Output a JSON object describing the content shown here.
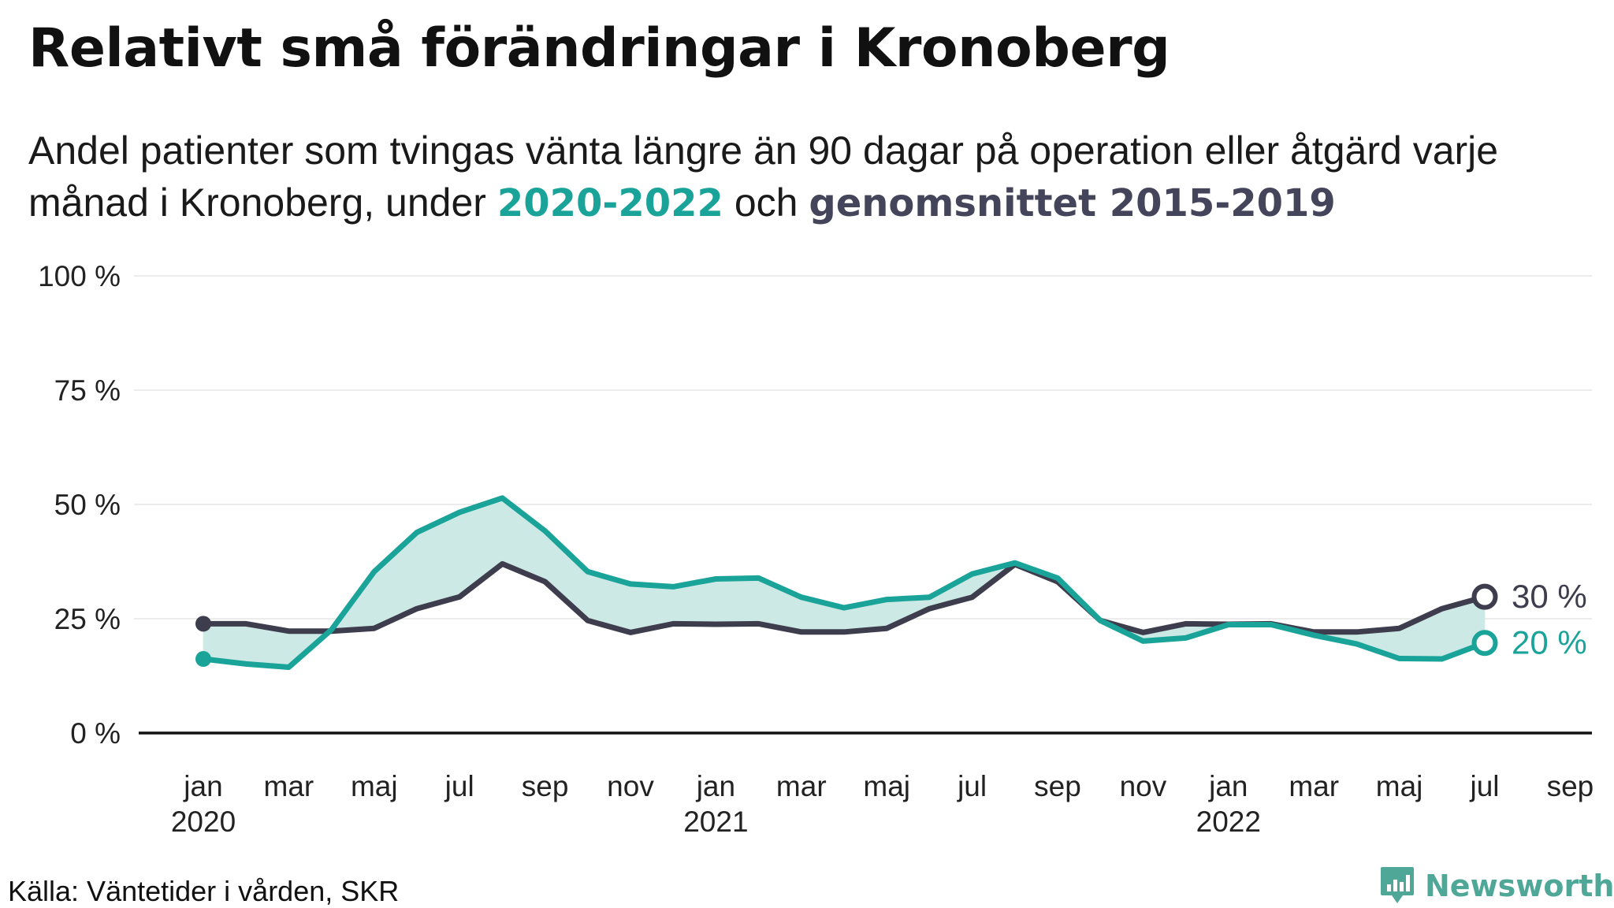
{
  "header": {
    "title": "Relativt små förändringar i Kronoberg",
    "subtitle_part1": "Andel patienter som tvingas vänta längre än 90 dagar på operation eller åtgärd varje månad i Kronoberg, under ",
    "subtitle_hl1": "2020-2022",
    "subtitle_part2": " och ",
    "subtitle_hl2": "genomsnittet 2015-2019"
  },
  "chart_data": {
    "type": "line",
    "y_ticks": [
      "0 %",
      "25 %",
      "50 %",
      "75 %",
      "100 %"
    ],
    "ylim": [
      0,
      100
    ],
    "x_tick_labels": [
      {
        "month": "jan",
        "year": "2020",
        "index": 0
      },
      {
        "month": "mar",
        "year": "",
        "index": 2
      },
      {
        "month": "maj",
        "year": "",
        "index": 4
      },
      {
        "month": "jul",
        "year": "",
        "index": 6
      },
      {
        "month": "sep",
        "year": "",
        "index": 8
      },
      {
        "month": "nov",
        "year": "",
        "index": 10
      },
      {
        "month": "jan",
        "year": "2021",
        "index": 12
      },
      {
        "month": "mar",
        "year": "",
        "index": 14
      },
      {
        "month": "maj",
        "year": "",
        "index": 16
      },
      {
        "month": "jul",
        "year": "",
        "index": 18
      },
      {
        "month": "sep",
        "year": "",
        "index": 20
      },
      {
        "month": "nov",
        "year": "",
        "index": 22
      },
      {
        "month": "jan",
        "year": "2022",
        "index": 24
      },
      {
        "month": "mar",
        "year": "",
        "index": 26
      },
      {
        "month": "maj",
        "year": "",
        "index": 28
      },
      {
        "month": "jul",
        "year": "",
        "index": 30
      },
      {
        "month": "sep",
        "year": "",
        "index": 32
      }
    ],
    "series": [
      {
        "key": "2020-2022",
        "color": "#1aa399",
        "end_label": "20 %",
        "values": [
          16.2,
          15.1,
          14.4,
          22.6,
          35.3,
          43.9,
          48.3,
          51.4,
          44.2,
          35.3,
          32.6,
          32.0,
          33.7,
          33.9,
          29.7,
          27.4,
          29.2,
          29.7,
          34.8,
          37.2,
          33.9,
          24.6,
          20.1,
          20.8,
          23.7,
          23.7,
          21.4,
          19.5,
          16.3,
          16.2,
          19.7
        ]
      },
      {
        "key": "genomsnittet 2015-2019",
        "color": "#3d3d4e",
        "end_label": "30 %",
        "values": [
          23.9,
          23.9,
          22.3,
          22.3,
          22.9,
          27.2,
          29.8,
          37.0,
          33.1,
          24.6,
          22.0,
          23.9,
          23.8,
          23.9,
          22.1,
          22.1,
          22.9,
          27.2,
          29.7,
          36.9,
          33.1,
          24.6,
          22.0,
          23.9,
          23.8,
          23.9,
          22.1,
          22.1,
          22.9,
          27.2,
          29.8
        ]
      }
    ]
  },
  "footer": {
    "source": "Källa: Väntetider i vården, SKR",
    "brand": "Newsworthy",
    "brand_color": "#4fa797"
  }
}
